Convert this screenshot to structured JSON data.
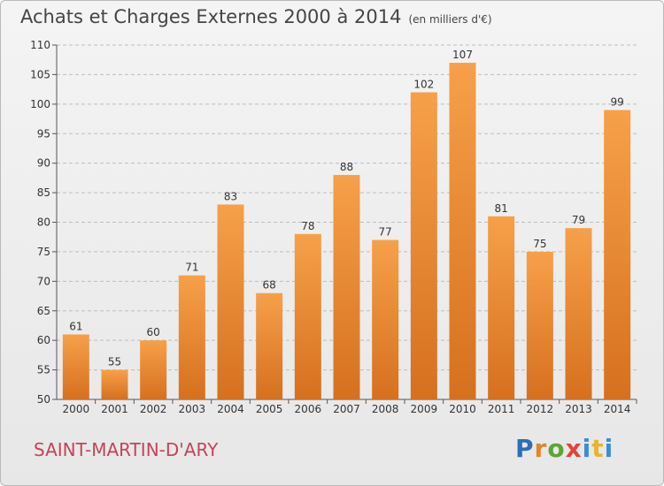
{
  "header": {
    "title": "Achats et Charges Externes 2000 à 2014",
    "unit": "(en milliers d'€)"
  },
  "footer": {
    "place": "SAINT-MARTIN-D'ARY",
    "logo_text": "Proxiti"
  },
  "colors": {
    "bar_top": "#f6a04a",
    "bar_bottom": "#d6701e",
    "grid": "#bdbdbd",
    "place": "#c2455a"
  },
  "chart_data": {
    "type": "bar",
    "title": "Achats et Charges Externes 2000 à 2014",
    "subtitle": "(en milliers d'€)",
    "xlabel": "",
    "ylabel": "",
    "categories": [
      "2000",
      "2001",
      "2002",
      "2003",
      "2004",
      "2005",
      "2006",
      "2007",
      "2008",
      "2009",
      "2010",
      "2011",
      "2012",
      "2013",
      "2014"
    ],
    "values": [
      61,
      55,
      60,
      71,
      83,
      68,
      78,
      88,
      77,
      102,
      107,
      81,
      75,
      79,
      99
    ],
    "ylim": [
      50,
      110
    ],
    "yticks": [
      50,
      55,
      60,
      65,
      70,
      75,
      80,
      85,
      90,
      95,
      100,
      105,
      110
    ],
    "grid": true,
    "legend": "none"
  }
}
